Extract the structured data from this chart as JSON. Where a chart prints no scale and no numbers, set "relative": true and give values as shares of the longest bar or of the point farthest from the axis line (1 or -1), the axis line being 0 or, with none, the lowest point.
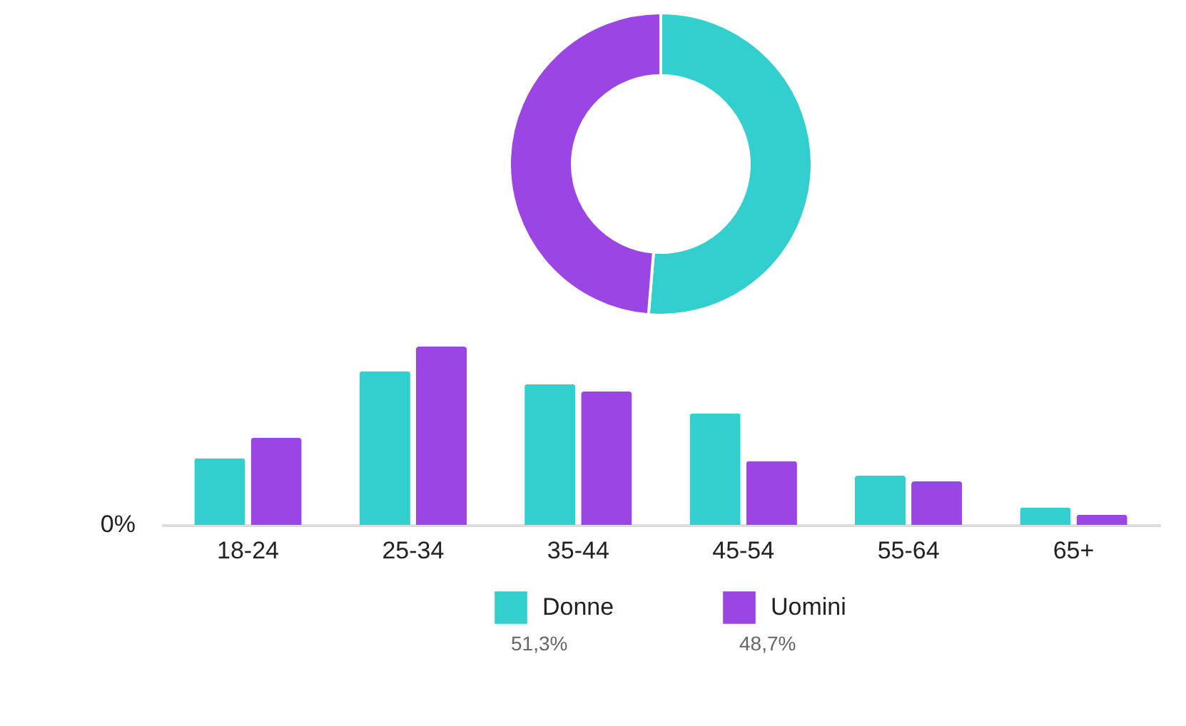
{
  "chart_data": [
    {
      "type": "donut",
      "categories": [
        "Donne",
        "Uomini"
      ],
      "values": [
        51.3,
        48.7
      ],
      "colors": [
        "#33cfcf",
        "#9b45e4"
      ],
      "value_labels": [
        "51,3%",
        "48,7%"
      ],
      "legend": "bottom"
    },
    {
      "type": "bar",
      "relative": true,
      "categories": [
        "18-24",
        "25-34",
        "35-44",
        "45-54",
        "55-64",
        "65+"
      ],
      "annotations": [
        "0%"
      ],
      "series": [
        {
          "color": "#33cfcf",
          "values": [
            0.374,
            0.862,
            0.789,
            0.626,
            0.276,
            0.098
          ]
        },
        {
          "color": "#9b45e4",
          "values": [
            0.488,
            1,
            0.748,
            0.358,
            0.244,
            0.057
          ]
        }
      ]
    }
  ]
}
